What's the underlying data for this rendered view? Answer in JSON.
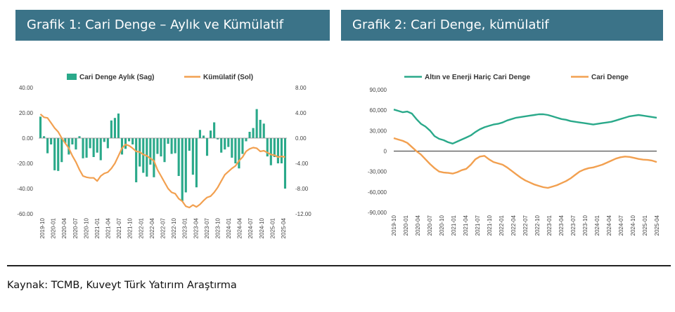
{
  "header": {
    "chart1_title": "Grafik 1: Cari Denge – Aylık ve Kümülatif",
    "chart2_title": "Grafik 2: Cari Denge, kümülatif"
  },
  "footer": {
    "source": "Kaynak: TCMB, Kuveyt Türk Yatırım Araştırma"
  },
  "colors": {
    "header_bg": "#3b7388",
    "teal": "#2aa98a",
    "orange": "#f2a050",
    "zero_line": "#333333"
  },
  "chart_data": [
    {
      "type": "bar+line",
      "title": "",
      "x_tick_labels": [
        "2019-10",
        "2020-01",
        "2020-04",
        "2020-07",
        "2020-10",
        "2021-01",
        "2021-04",
        "2021-07",
        "2021-10",
        "2022-01",
        "2022-04",
        "2022-07",
        "2022-10",
        "2023-01",
        "2023-04",
        "2023-07",
        "2023-10",
        "2024-01",
        "2024-04",
        "2024-07",
        "2024-10",
        "2025-01",
        "2025-04"
      ],
      "left_axis": {
        "ylim": [
          -60,
          40
        ],
        "ticks": [
          "40.00",
          "20.00",
          "0.00",
          "-20.00",
          "-40.00",
          "-60.00"
        ],
        "tick_values": [
          40,
          20,
          0,
          -20,
          -40,
          -60
        ]
      },
      "right_axis": {
        "ylim": [
          -12,
          8
        ],
        "ticks": [
          "8.00",
          "4.00",
          "0.00",
          "-4.00",
          "-8.00",
          "-12.00"
        ],
        "tick_values": [
          8,
          4,
          0,
          -4,
          -8,
          -12
        ]
      },
      "series": [
        {
          "name": "Cari Denge Aylık (Sag)",
          "kind": "bar",
          "axis": "right",
          "values": [
            3.4,
            0.3,
            -2.4,
            -1.0,
            -5.1,
            -5.2,
            -3.8,
            -0.8,
            -2.6,
            -1.0,
            -1.8,
            0.3,
            -3.2,
            -3.1,
            -1.6,
            -3.0,
            -2.3,
            -3.5,
            -0.6,
            -1.6,
            2.8,
            3.2,
            3.9,
            -2.6,
            -1.7,
            -0.5,
            -1.0,
            -7.0,
            -4.5,
            -5.5,
            -6.1,
            -4.2,
            -6.2,
            -2.5,
            -2.9,
            -3.8,
            -0.9,
            -2.5,
            -2.4,
            -6.0,
            -10.0,
            -8.6,
            -2.0,
            -5.8,
            -7.8,
            1.3,
            0.4,
            -2.8,
            1.2,
            2.5,
            -0.2,
            -2.3,
            -1.8,
            -1.4,
            -3.1,
            -4.0,
            -4.8,
            -2.5,
            -0.5,
            1.0,
            1.6,
            4.6,
            2.9,
            2.3,
            -2.9,
            -4.3,
            -3.0,
            -4.0,
            -4.0,
            -8.0
          ]
        },
        {
          "name": "Kümülatif (Sol)",
          "kind": "line",
          "axis": "left",
          "values": [
            19.0,
            16.5,
            16.0,
            12.0,
            8.0,
            5.0,
            0.0,
            -4.0,
            -8.0,
            -14.0,
            -19.0,
            -25.0,
            -30.0,
            -31.0,
            -31.5,
            -31.5,
            -34.0,
            -30.0,
            -28.0,
            -27.0,
            -24.0,
            -20.0,
            -14.0,
            -8.0,
            -5.0,
            -6.0,
            -8.0,
            -10.5,
            -11.0,
            -13.0,
            -14.0,
            -16.0,
            -18.0,
            -25.0,
            -30.0,
            -35.0,
            -40.0,
            -43.0,
            -44.0,
            -48.0,
            -50.0,
            -54.0,
            -55.0,
            -53.0,
            -54.5,
            -52.5,
            -49.5,
            -47.0,
            -46.0,
            -43.0,
            -39.0,
            -34.0,
            -29.0,
            -26.5,
            -24.0,
            -22.0,
            -18.0,
            -15.0,
            -10.5,
            -8.5,
            -7.5,
            -8.0,
            -10.5,
            -10.0,
            -11.5,
            -13.0,
            -13.5,
            -15.0,
            -14.5,
            -15.0
          ]
        }
      ]
    },
    {
      "type": "line",
      "title": "",
      "x_tick_labels": [
        "2019-10",
        "2020-01",
        "2020-04",
        "2020-07",
        "2020-10",
        "2021-01",
        "2021-04",
        "2021-07",
        "2021-10",
        "2022-01",
        "2022-04",
        "2022-07",
        "2022-10",
        "2023-01",
        "2023-04",
        "2023-07",
        "2023-10",
        "2024-01",
        "2024-04",
        "2024-07",
        "2024-10",
        "2025-01",
        "2025-04"
      ],
      "ylim": [
        -90000,
        90000
      ],
      "y_ticks": [
        "90,000",
        "60,000",
        "30,000",
        "0",
        "-30,000",
        "-60,000",
        "-90,000"
      ],
      "y_tick_values": [
        90000,
        60000,
        30000,
        0,
        -30000,
        -60000,
        -90000
      ],
      "series": [
        {
          "name": "Altın ve Enerji Hariç Cari Denge",
          "values": [
            61000,
            59000,
            57000,
            58000,
            55000,
            47000,
            40000,
            36000,
            30000,
            22000,
            18000,
            16000,
            13000,
            11000,
            14000,
            17000,
            20000,
            23000,
            28000,
            32000,
            35000,
            37000,
            39000,
            40000,
            42000,
            45000,
            47000,
            49000,
            50000,
            51000,
            52000,
            53000,
            54000,
            54000,
            53000,
            51000,
            49000,
            47000,
            46000,
            44000,
            43000,
            42000,
            41000,
            40000,
            39000,
            40000,
            41000,
            42000,
            43000,
            45000,
            47000,
            49000,
            51000,
            52000,
            53000,
            52000,
            51000,
            50000,
            49000
          ]
        },
        {
          "name": "Cari Denge",
          "values": [
            19000,
            17000,
            15000,
            12000,
            6000,
            0,
            -5000,
            -12000,
            -19000,
            -25000,
            -30000,
            -31500,
            -32000,
            -33000,
            -31000,
            -28000,
            -26000,
            -20000,
            -12000,
            -8000,
            -7000,
            -12000,
            -16000,
            -18000,
            -20000,
            -24000,
            -29000,
            -34000,
            -39000,
            -43000,
            -46000,
            -49000,
            -51000,
            -53000,
            -54000,
            -52000,
            -50000,
            -47000,
            -44000,
            -40000,
            -35000,
            -30000,
            -27000,
            -25000,
            -24000,
            -22000,
            -20000,
            -17000,
            -14000,
            -11000,
            -9000,
            -8000,
            -8500,
            -10000,
            -11500,
            -12500,
            -13000,
            -14000,
            -16000
          ]
        }
      ]
    }
  ]
}
